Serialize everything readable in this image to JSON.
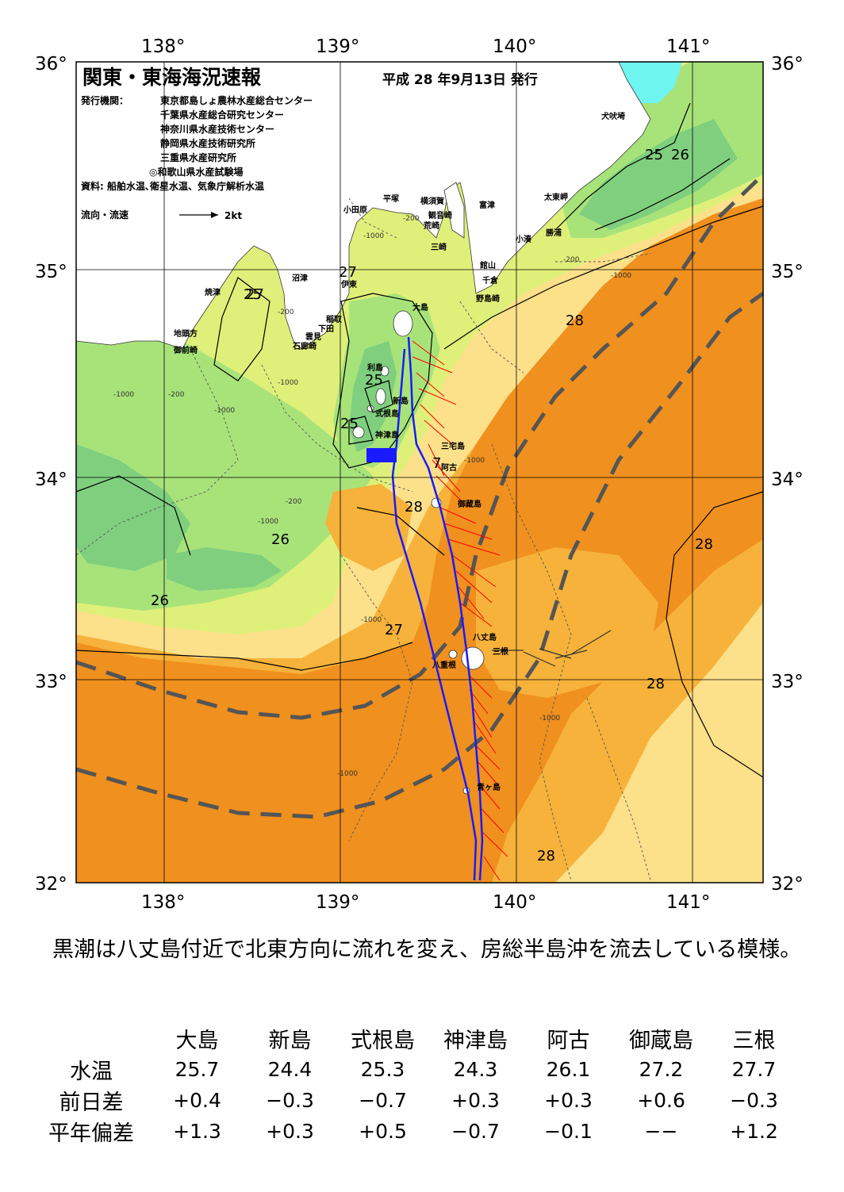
{
  "report": {
    "title": "関東・東海海況速報",
    "issued": "平成 28 年9月13日 発行",
    "org_label": "発行機関：",
    "orgs": [
      "東京都島しょ農林水産総合センター",
      "千葉県水産総合研究センター",
      "神奈川県水産技術センター",
      "静岡県水産技術研究所",
      "三重県水産研究所",
      "◎和歌山県水産試験場"
    ],
    "sources": "資料: 船舶水温､衛星水温、気象庁解析水温",
    "legend_label": "流向・流速",
    "legend_scale": "2kt"
  },
  "map": {
    "lon_labels": [
      "138°",
      "139°",
      "140°",
      "141°"
    ],
    "lat_labels": [
      "36°",
      "35°",
      "34°",
      "33°",
      "32°"
    ],
    "isotherm_labels": [
      "25",
      "26",
      "25",
      "27",
      "27",
      "28",
      "25",
      "25",
      "7",
      "28",
      "26",
      "28",
      "26",
      "27",
      "28",
      "28"
    ],
    "depth_labels": [
      "-200",
      "-1000",
      "-200",
      "-1000",
      "-1000",
      "-200",
      "-1000",
      "-1000",
      "-1000",
      "-1000",
      "-1000",
      "-1000",
      "-200",
      "-200",
      "-1000"
    ],
    "places": [
      "犬吠埼",
      "太東岬",
      "勝浦",
      "小湊",
      "富津",
      "観音崎",
      "横須賀",
      "荒崎",
      "平塚",
      "小田原",
      "三崎",
      "館山",
      "千倉",
      "野島崎",
      "沼津",
      "伊東",
      "焼津",
      "稲取",
      "下田",
      "雲見",
      "石廊崎",
      "地頭方",
      "御前崎",
      "大島",
      "利島",
      "新島",
      "式根島",
      "神津島",
      "三宅島",
      "阿古",
      "御蔵島",
      "八丈島",
      "三根",
      "八重根",
      "青ヶ島"
    ],
    "colors": {
      "t24_25": "#7fcf7f",
      "t25_26": "#a8e37a",
      "t26_27": "#dff07a",
      "t27_275": "#fde08a",
      "t275_28": "#f6b23a",
      "t28_plus": "#f0901e",
      "cold_water": "#6ff5f0",
      "kuroshio_axis": "#555555",
      "ship_track": "#1a1aff",
      "current_vectors": "#ff0000"
    }
  },
  "summary": "黒潮は八丈島付近で北東方向に流れを変え、房総半島沖を流去している模様。",
  "table": {
    "columns": [
      "大島",
      "新島",
      "式根島",
      "神津島",
      "阿古",
      "御蔵島",
      "三根"
    ],
    "rows": [
      {
        "label": "水温",
        "values": [
          "25.7",
          "24.4",
          "25.3",
          "24.3",
          "26.1",
          "27.2",
          "27.7"
        ]
      },
      {
        "label": "前日差",
        "values": [
          "+0.4",
          "−0.3",
          "−0.7",
          "+0.3",
          "+0.3",
          "+0.6",
          "−0.3"
        ]
      },
      {
        "label": "平年偏差",
        "values": [
          "+1.3",
          "+0.3",
          "+0.5",
          "−0.7",
          "−0.1",
          "−−",
          "+1.2"
        ]
      }
    ]
  }
}
